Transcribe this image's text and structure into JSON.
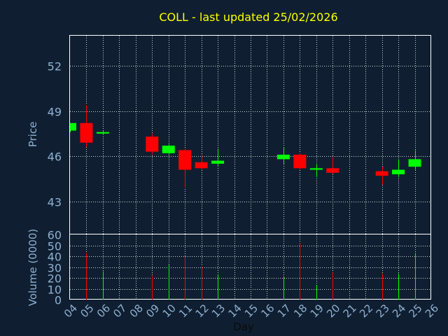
{
  "chart_data": {
    "type": "candlestick",
    "title": "COLL - last updated 25/02/2026",
    "xlabel": "Day",
    "grid": true,
    "days": [
      "04",
      "05",
      "06",
      "07",
      "08",
      "09",
      "10",
      "11",
      "12",
      "13",
      "14",
      "15",
      "16",
      "17",
      "18",
      "19",
      "20",
      "21",
      "22",
      "23",
      "24",
      "25",
      "26"
    ],
    "price_panel": {
      "ylabel": "Price",
      "ylim": [
        40.8,
        54.0
      ],
      "ticks": [
        43,
        46,
        49,
        52
      ]
    },
    "volume_panel": {
      "ylabel": "Volume (0000)",
      "ylim": [
        0,
        60
      ],
      "ticks": [
        0,
        10,
        20,
        30,
        40,
        50,
        60
      ]
    },
    "candles": [
      {
        "day": "04",
        "open": 47.7,
        "close": 48.2,
        "high": 48.2,
        "low": 47.6,
        "volume": 0
      },
      {
        "day": "05",
        "open": 48.2,
        "close": 46.9,
        "high": 49.4,
        "low": 46.6,
        "volume": 43
      },
      {
        "day": "06",
        "open": 47.5,
        "close": 47.6,
        "high": 47.7,
        "low": 47.4,
        "volume": 26
      },
      {
        "day": "09",
        "open": 47.3,
        "close": 46.3,
        "high": 47.5,
        "low": 46.1,
        "volume": 22
      },
      {
        "day": "10",
        "open": 46.2,
        "close": 46.7,
        "high": 46.8,
        "low": 46.1,
        "volume": 32
      },
      {
        "day": "11",
        "open": 46.4,
        "close": 45.1,
        "high": 46.5,
        "low": 43.9,
        "volume": 40
      },
      {
        "day": "12",
        "open": 45.6,
        "close": 45.2,
        "high": 46.1,
        "low": 45.1,
        "volume": 31
      },
      {
        "day": "13",
        "open": 45.5,
        "close": 45.7,
        "high": 46.5,
        "low": 45.3,
        "volume": 23
      },
      {
        "day": "17",
        "open": 45.8,
        "close": 46.1,
        "high": 46.6,
        "low": 45.5,
        "volume": 21
      },
      {
        "day": "18",
        "open": 46.1,
        "close": 45.2,
        "high": 46.2,
        "low": 45.1,
        "volume": 52
      },
      {
        "day": "19",
        "open": 45.1,
        "close": 45.2,
        "high": 45.5,
        "low": 44.6,
        "volume": 13
      },
      {
        "day": "20",
        "open": 45.2,
        "close": 44.9,
        "high": 45.9,
        "low": 44.8,
        "volume": 25
      },
      {
        "day": "23",
        "open": 45.0,
        "close": 44.7,
        "high": 45.3,
        "low": 44.1,
        "volume": 24
      },
      {
        "day": "24",
        "open": 44.8,
        "close": 45.1,
        "high": 45.8,
        "low": 44.6,
        "volume": 24
      },
      {
        "day": "25",
        "open": 45.3,
        "close": 45.8,
        "high": 46.4,
        "low": 45.1,
        "volume": 43
      }
    ],
    "colors": {
      "background": "#0f1f31",
      "title": "#ffff00",
      "axis_text": "#8fb0d0",
      "up": "#00ff00",
      "down": "#ff0000",
      "grid": "#ffffff",
      "frame": "#ffffff"
    }
  }
}
